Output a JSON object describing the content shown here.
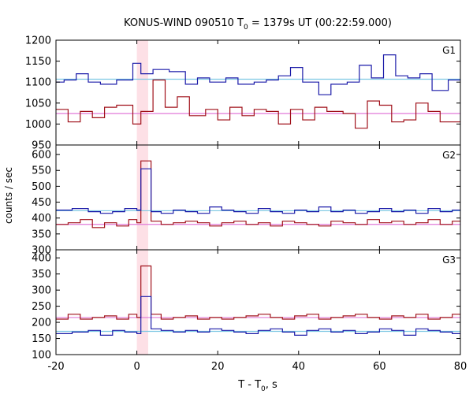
{
  "chart_data": {
    "type": "line",
    "title": "KONUS-WIND 090510 T",
    "title_sub": "0",
    "title_rest": " = 1379s UT (00:22:59.000)",
    "xlabel": "T - T",
    "xlabel_sub": "0",
    "xlabel_rest": ", s",
    "ylabel": "counts / sec",
    "xlim": [
      -20,
      80
    ],
    "x_ticks": [
      -20,
      0,
      20,
      40,
      60,
      80
    ],
    "highlight_band": [
      0,
      2.8
    ],
    "colors": {
      "blue": "#1a1aa8",
      "red": "#a0101a",
      "lightblue": "#7ec8e3",
      "pink": "#e07ad8",
      "band": "#fde0e6"
    },
    "panels": [
      {
        "name": "G1",
        "ylim": [
          950,
          1200
        ],
        "y_ticks": [
          950,
          1000,
          1050,
          1100,
          1150,
          1200
        ],
        "blue_edges": [
          -20,
          -18,
          -15,
          -12,
          -9,
          -5,
          -1,
          1,
          4,
          8,
          12,
          15,
          18,
          22,
          25,
          29,
          32,
          35,
          38,
          41,
          45,
          48,
          52,
          55,
          58,
          61,
          64,
          67,
          70,
          73,
          77,
          80
        ],
        "blue_values": [
          1100,
          1105,
          1120,
          1100,
          1095,
          1105,
          1145,
          1120,
          1130,
          1125,
          1095,
          1110,
          1100,
          1110,
          1095,
          1100,
          1105,
          1115,
          1135,
          1100,
          1070,
          1095,
          1100,
          1140,
          1110,
          1165,
          1115,
          1110,
          1120,
          1080,
          1105
        ],
        "blue_fit": 1107,
        "red_edges": [
          -20,
          -17,
          -14,
          -11,
          -8,
          -5,
          -1,
          1,
          4,
          7,
          10,
          13,
          17,
          20,
          23,
          26,
          29,
          32,
          35,
          38,
          41,
          44,
          47,
          51,
          54,
          57,
          60,
          63,
          66,
          69,
          72,
          75,
          80
        ],
        "red_values": [
          1035,
          1005,
          1030,
          1015,
          1040,
          1045,
          1000,
          1030,
          1105,
          1040,
          1065,
          1020,
          1035,
          1010,
          1040,
          1020,
          1035,
          1030,
          1000,
          1035,
          1010,
          1040,
          1030,
          1025,
          990,
          1055,
          1045,
          1005,
          1010,
          1050,
          1030,
          1005
        ],
        "red_fit": 1025
      },
      {
        "name": "G2",
        "ylim": [
          300,
          630
        ],
        "y_ticks": [
          300,
          350,
          400,
          450,
          500,
          550,
          600
        ],
        "blue_edges": [
          -20,
          -16,
          -12,
          -9,
          -6,
          -3,
          0,
          1,
          3.5,
          6,
          9,
          12,
          15,
          18,
          21,
          24,
          27,
          30,
          33,
          36,
          39,
          42,
          45,
          48,
          51,
          54,
          57,
          60,
          63,
          66,
          69,
          72,
          75,
          78,
          80
        ],
        "blue_values": [
          425,
          430,
          420,
          415,
          420,
          430,
          425,
          555,
          420,
          415,
          425,
          420,
          415,
          435,
          425,
          420,
          415,
          430,
          420,
          415,
          425,
          420,
          435,
          420,
          425,
          415,
          420,
          430,
          420,
          425,
          415,
          430,
          420,
          425
        ],
        "blue_fit": 423,
        "red_edges": [
          -20,
          -17,
          -14,
          -11,
          -8,
          -5,
          -2,
          0,
          1,
          3.5,
          6,
          9,
          12,
          15,
          18,
          21,
          24,
          27,
          30,
          33,
          36,
          39,
          42,
          45,
          48,
          51,
          54,
          57,
          60,
          63,
          66,
          69,
          72,
          75,
          78,
          80
        ],
        "red_values": [
          380,
          385,
          395,
          370,
          385,
          375,
          395,
          385,
          580,
          390,
          380,
          385,
          390,
          385,
          375,
          385,
          390,
          380,
          385,
          375,
          390,
          385,
          380,
          375,
          390,
          385,
          380,
          395,
          385,
          390,
          380,
          385,
          395,
          380,
          390
        ],
        "red_fit": 380
      },
      {
        "name": "G3",
        "ylim": [
          100,
          425
        ],
        "y_ticks": [
          100,
          150,
          200,
          250,
          300,
          350,
          400
        ],
        "blue_edges": [
          -20,
          -16,
          -12,
          -9,
          -6,
          -3,
          0,
          1,
          3.5,
          6,
          9,
          12,
          15,
          18,
          21,
          24,
          27,
          30,
          33,
          36,
          39,
          42,
          45,
          48,
          51,
          54,
          57,
          60,
          63,
          66,
          69,
          72,
          75,
          78,
          80
        ],
        "blue_values": [
          165,
          170,
          175,
          160,
          175,
          170,
          165,
          280,
          180,
          175,
          170,
          175,
          170,
          180,
          175,
          170,
          165,
          175,
          180,
          170,
          160,
          175,
          180,
          170,
          175,
          165,
          170,
          180,
          175,
          160,
          180,
          175,
          170,
          165
        ],
        "blue_fit": 172,
        "red_edges": [
          -20,
          -17,
          -14,
          -11,
          -8,
          -5,
          -2,
          0,
          1,
          3.5,
          6,
          9,
          12,
          15,
          18,
          21,
          24,
          27,
          30,
          33,
          36,
          39,
          42,
          45,
          48,
          51,
          54,
          57,
          60,
          63,
          66,
          69,
          72,
          75,
          78,
          80
        ],
        "red_values": [
          210,
          225,
          210,
          215,
          220,
          210,
          225,
          215,
          375,
          225,
          210,
          215,
          220,
          210,
          215,
          210,
          215,
          220,
          225,
          215,
          210,
          220,
          225,
          210,
          215,
          220,
          225,
          215,
          210,
          220,
          215,
          225,
          210,
          215,
          225
        ],
        "red_fit": 215
      }
    ]
  }
}
